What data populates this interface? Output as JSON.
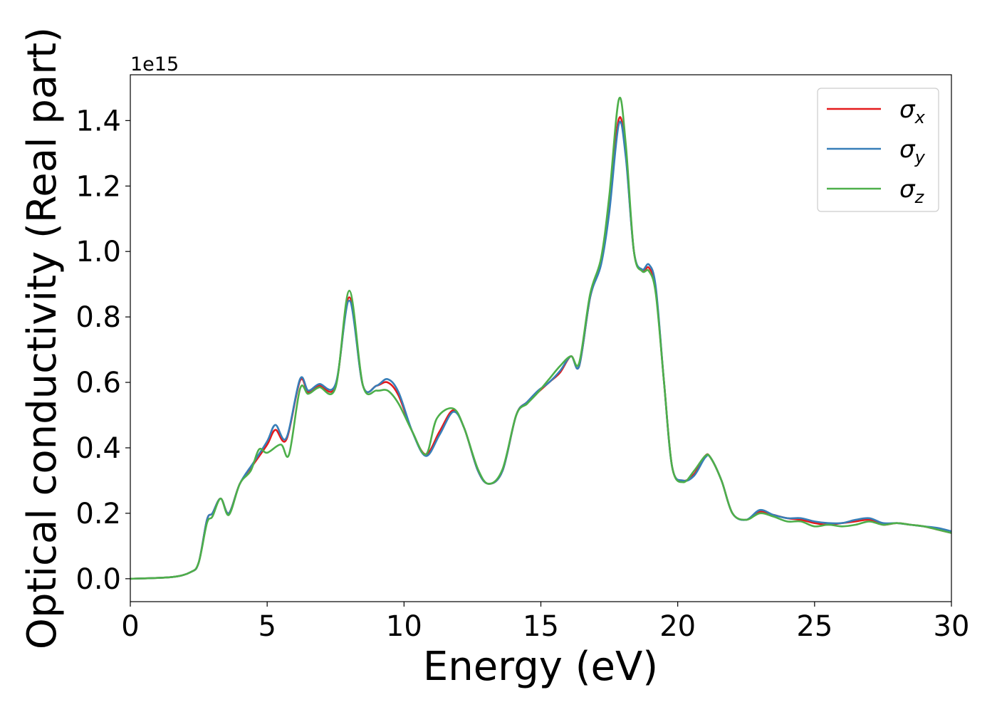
{
  "chart_data": {
    "type": "line",
    "xlabel": "Energy (eV)",
    "ylabel": "Optical conductivity (Real part)",
    "y_offset_label": "1e15",
    "xlim": [
      0,
      30
    ],
    "ylim": [
      -0.07,
      1.54
    ],
    "xticks": [
      0,
      5,
      10,
      15,
      20,
      25,
      30
    ],
    "yticks": [
      0.0,
      0.2,
      0.4,
      0.6,
      0.8,
      1.0,
      1.2,
      1.4
    ],
    "ytick_labels": [
      "0.0",
      "0.2",
      "0.4",
      "0.6",
      "0.8",
      "1.0",
      "1.2",
      "1.4"
    ],
    "grid": false,
    "legend_position": "top-right",
    "series": [
      {
        "name": "σx",
        "label_main": "σ",
        "label_sub": "x",
        "color": "#e41a1c",
        "x": [
          0,
          1.5,
          2.2,
          2.5,
          2.8,
          3.0,
          3.3,
          3.6,
          4.0,
          4.5,
          5.0,
          5.3,
          5.7,
          6.2,
          6.5,
          6.9,
          7.5,
          8.0,
          8.5,
          9.0,
          9.4,
          9.8,
          10.3,
          10.8,
          11.3,
          11.8,
          12.2,
          12.7,
          13.1,
          13.6,
          14.1,
          14.5,
          14.9,
          15.3,
          15.7,
          16.1,
          16.4,
          16.8,
          17.2,
          17.5,
          17.85,
          18.1,
          18.4,
          18.7,
          18.95,
          19.2,
          19.5,
          19.8,
          20.2,
          20.6,
          21.0,
          21.2,
          21.6,
          22.0,
          22.5,
          23.0,
          23.5,
          24.0,
          24.5,
          25.0,
          25.5,
          26.0,
          26.5,
          27.0,
          27.5,
          28.0,
          28.5,
          29.0,
          29.5,
          30.0
        ],
        "y": [
          0.0,
          0.005,
          0.02,
          0.05,
          0.18,
          0.2,
          0.245,
          0.2,
          0.29,
          0.35,
          0.41,
          0.455,
          0.425,
          0.605,
          0.57,
          0.59,
          0.59,
          0.86,
          0.59,
          0.59,
          0.6,
          0.56,
          0.45,
          0.38,
          0.45,
          0.515,
          0.46,
          0.33,
          0.29,
          0.33,
          0.5,
          0.54,
          0.57,
          0.6,
          0.63,
          0.68,
          0.65,
          0.86,
          0.97,
          1.15,
          1.405,
          1.3,
          1.0,
          0.94,
          0.95,
          0.88,
          0.6,
          0.34,
          0.3,
          0.32,
          0.375,
          0.37,
          0.3,
          0.2,
          0.18,
          0.205,
          0.195,
          0.185,
          0.18,
          0.17,
          0.165,
          0.17,
          0.175,
          0.18,
          0.165,
          0.17,
          0.165,
          0.16,
          0.15,
          0.14
        ]
      },
      {
        "name": "σy",
        "label_main": "σ",
        "label_sub": "y",
        "color": "#377eb8",
        "x": [
          0,
          1.5,
          2.2,
          2.5,
          2.8,
          3.0,
          3.3,
          3.6,
          4.0,
          4.5,
          5.0,
          5.3,
          5.7,
          6.2,
          6.5,
          6.9,
          7.5,
          8.0,
          8.5,
          9.0,
          9.4,
          9.8,
          10.3,
          10.8,
          11.3,
          11.8,
          12.2,
          12.7,
          13.1,
          13.6,
          14.1,
          14.5,
          14.9,
          15.3,
          15.7,
          16.1,
          16.4,
          16.8,
          17.2,
          17.5,
          17.85,
          18.1,
          18.4,
          18.7,
          18.95,
          19.2,
          19.5,
          19.8,
          20.2,
          20.6,
          21.0,
          21.2,
          21.6,
          22.0,
          22.5,
          23.0,
          23.5,
          24.0,
          24.5,
          25.0,
          25.5,
          26.0,
          26.5,
          27.0,
          27.5,
          28.0,
          28.5,
          29.0,
          29.5,
          30.0
        ],
        "y": [
          0.0,
          0.005,
          0.02,
          0.05,
          0.18,
          0.2,
          0.245,
          0.2,
          0.29,
          0.355,
          0.42,
          0.47,
          0.43,
          0.61,
          0.575,
          0.595,
          0.595,
          0.85,
          0.59,
          0.59,
          0.61,
          0.57,
          0.45,
          0.375,
          0.44,
          0.51,
          0.46,
          0.33,
          0.29,
          0.33,
          0.5,
          0.54,
          0.575,
          0.6,
          0.635,
          0.68,
          0.65,
          0.86,
          0.96,
          1.12,
          1.39,
          1.29,
          1.0,
          0.945,
          0.96,
          0.89,
          0.6,
          0.34,
          0.3,
          0.315,
          0.37,
          0.37,
          0.3,
          0.2,
          0.18,
          0.21,
          0.195,
          0.185,
          0.185,
          0.175,
          0.17,
          0.17,
          0.18,
          0.185,
          0.17,
          0.17,
          0.165,
          0.16,
          0.155,
          0.145
        ]
      },
      {
        "name": "σz",
        "label_main": "σ",
        "label_sub": "z",
        "color": "#4daf4a",
        "x": [
          0,
          1.5,
          2.2,
          2.5,
          2.8,
          3.0,
          3.3,
          3.6,
          4.0,
          4.4,
          4.7,
          5.0,
          5.5,
          5.8,
          6.2,
          6.5,
          6.9,
          7.5,
          8.0,
          8.5,
          9.0,
          9.4,
          9.8,
          10.3,
          10.8,
          11.2,
          11.8,
          12.2,
          12.7,
          13.1,
          13.6,
          14.1,
          14.5,
          14.9,
          15.3,
          15.7,
          16.1,
          16.4,
          16.8,
          17.2,
          17.5,
          17.85,
          18.1,
          18.4,
          18.7,
          18.95,
          19.2,
          19.5,
          19.8,
          20.2,
          20.6,
          21.0,
          21.2,
          21.6,
          22.0,
          22.5,
          23.0,
          23.5,
          24.0,
          24.5,
          25.0,
          25.5,
          26.0,
          26.5,
          27.0,
          27.5,
          28.0,
          28.5,
          29.0,
          29.5,
          30.0
        ],
        "y": [
          0.0,
          0.005,
          0.02,
          0.05,
          0.17,
          0.19,
          0.245,
          0.195,
          0.29,
          0.33,
          0.395,
          0.385,
          0.41,
          0.38,
          0.58,
          0.565,
          0.585,
          0.585,
          0.88,
          0.59,
          0.575,
          0.575,
          0.535,
          0.45,
          0.38,
          0.49,
          0.52,
          0.46,
          0.335,
          0.29,
          0.335,
          0.5,
          0.535,
          0.57,
          0.61,
          0.65,
          0.68,
          0.66,
          0.87,
          0.98,
          1.17,
          1.465,
          1.33,
          1.0,
          0.94,
          0.94,
          0.87,
          0.6,
          0.34,
          0.295,
          0.33,
          0.375,
          0.37,
          0.3,
          0.2,
          0.18,
          0.2,
          0.19,
          0.175,
          0.175,
          0.16,
          0.165,
          0.16,
          0.165,
          0.175,
          0.165,
          0.17,
          0.165,
          0.16,
          0.15,
          0.14
        ]
      }
    ]
  }
}
